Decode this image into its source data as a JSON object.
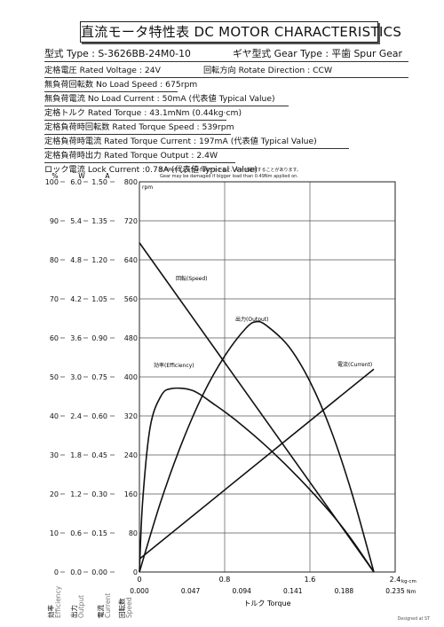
{
  "title": "直流モータ特性表 DC MOTOR CHARACTERISTICS",
  "specs": {
    "model": "型式 Type : S-3626BB-24M0-10",
    "gear_type": "ギヤ型式 Gear Type : 平歯 Spur Gear",
    "rated_voltage": "定格電圧 Rated Voltage : 24V",
    "rotate_direction": "回転方向 Rotate Direction : CCW",
    "no_load_speed": "無負荷回転数 No Load Speed : 675rpm",
    "no_load_current": "無負荷電流 No Load Current : 50mA (代表値 Typical Value)",
    "rated_torque": "定格トルク Rated Torque : 43.1mNm (0.44kg·cm)",
    "rated_torque_speed": "定格負荷時回転数 Rated Torque Speed : 539rpm",
    "rated_torque_current": "定格負荷時電流 Rated Torque Current : 197mA (代表値 Typical Value)",
    "rated_torque_output": "定格負荷時出力 Rated Torque Output : 2.4W",
    "lock_current": "ロック電流 Lock Current :0.78A (代表値 Typical Value)"
  },
  "warning": {
    "ja": "0.49Nm以上大きい負荷がかかると、ギヤが破損することがあります。",
    "en": "Gear may be damaged if bigger load than 0.49Nm applied on."
  },
  "footer_note": "Designed at ST",
  "chart_data": {
    "type": "line",
    "axes": {
      "efficiency": {
        "unit": "%",
        "label": "効率 Efficiency",
        "ticks": [
          "100",
          "90",
          "80",
          "70",
          "60",
          "50",
          "40",
          "30",
          "20",
          "10",
          "0"
        ]
      },
      "output": {
        "unit": "W",
        "label": "出力 Output",
        "ticks": [
          "6.0",
          "5.4",
          "4.8",
          "4.2",
          "3.6",
          "3.0",
          "2.4",
          "1.8",
          "1.2",
          "0.6",
          "0.0"
        ]
      },
      "current": {
        "unit": "A",
        "label": "電流 Current",
        "ticks": [
          "1.50",
          "1.35",
          "1.20",
          "1.05",
          "0.90",
          "0.75",
          "0.60",
          "0.45",
          "0.30",
          "0.15",
          "0.00"
        ]
      },
      "speed": {
        "unit": "rpm",
        "label": "回転数 Speed",
        "ticks": [
          "800",
          "720",
          "640",
          "560",
          "480",
          "400",
          "320",
          "240",
          "160",
          "80",
          "0"
        ]
      },
      "torque_kgcm": {
        "unit": "kg·cm",
        "ticks": [
          "0",
          "0.8",
          "1.6",
          "2.4"
        ]
      },
      "torque_nm": {
        "unit": "Nm",
        "label": "トルク Torque",
        "ticks": [
          "0.000",
          "0.047",
          "0.094",
          "0.141",
          "0.188",
          "0.235"
        ]
      }
    },
    "xlim_kgcm": [
      0,
      2.4
    ],
    "ylim_rpm": [
      0,
      800
    ],
    "grid": true,
    "series": [
      {
        "name": "回転(Speed)",
        "unit": "rpm",
        "x": [
          0,
          2.2
        ],
        "y": [
          675,
          0
        ]
      },
      {
        "name": "電流(Current)",
        "unit": "A",
        "x": [
          0,
          2.2
        ],
        "y": [
          0.05,
          0.78
        ]
      },
      {
        "name": "出力(Output)",
        "unit": "W",
        "x": [
          0,
          0.2,
          0.4,
          0.6,
          0.8,
          1.0,
          1.1,
          1.2,
          1.4,
          1.6,
          1.8,
          2.0,
          2.2
        ],
        "y": [
          0,
          1.08,
          1.99,
          2.74,
          3.32,
          3.75,
          3.85,
          3.78,
          3.47,
          2.93,
          2.17,
          1.18,
          0
        ]
      },
      {
        "name": "効率(Efficiency)",
        "unit": "%",
        "x": [
          0,
          0.03,
          0.1,
          0.2,
          0.3,
          0.5,
          0.7,
          0.9,
          1.2,
          1.5,
          1.8,
          2.0,
          2.2
        ],
        "y": [
          0,
          18,
          37,
          45,
          47,
          46.5,
          43,
          39,
          32,
          24,
          15,
          8,
          0
        ]
      }
    ]
  }
}
